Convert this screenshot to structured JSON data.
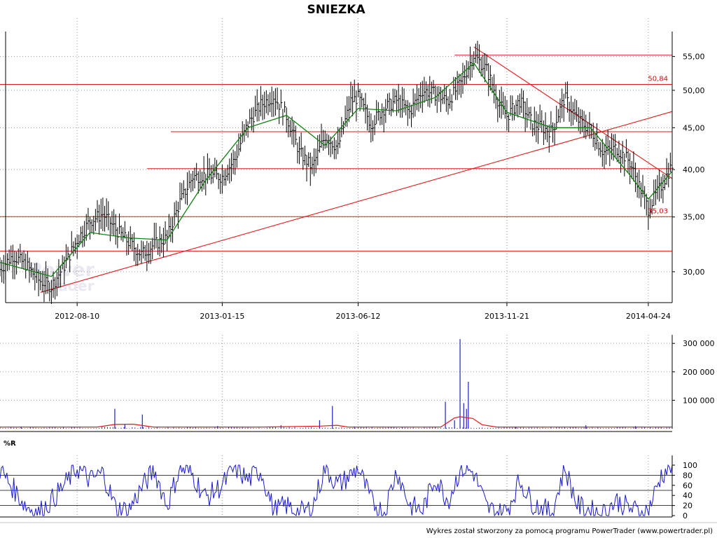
{
  "chart_data": [
    {
      "type": "candlestick",
      "title": "SNIEZKA",
      "xlim": [
        "2012-05-18",
        "2014-05-20"
      ],
      "x_tick_labels": [
        "2012-08-10",
        "2013-01-15",
        "2013-06-12",
        "2013-11-21",
        "2014-04-24"
      ],
      "y_scale": "log",
      "ylim": [
        27.5,
        59
      ],
      "y_ticks": [
        "55,00",
        "50,00",
        "45,00",
        "40,00",
        "35,00",
        "30,00"
      ],
      "grid": true,
      "series": [
        {
          "name": "close",
          "x": [
            "2012-05-18",
            "2012-06-01",
            "2012-06-15",
            "2012-06-29",
            "2012-07-13",
            "2012-07-27",
            "2012-08-10",
            "2012-08-24",
            "2012-09-07",
            "2012-09-21",
            "2012-10-05",
            "2012-10-19",
            "2012-11-02",
            "2012-11-16",
            "2012-11-30",
            "2012-12-14",
            "2012-12-28",
            "2013-01-15",
            "2013-01-29",
            "2013-02-12",
            "2013-02-26",
            "2013-03-12",
            "2013-03-26",
            "2013-04-09",
            "2013-04-23",
            "2013-05-07",
            "2013-05-21",
            "2013-06-04",
            "2013-06-12",
            "2013-06-26",
            "2013-07-10",
            "2013-07-24",
            "2013-08-07",
            "2013-08-21",
            "2013-09-04",
            "2013-09-18",
            "2013-10-02",
            "2013-10-16",
            "2013-10-30",
            "2013-11-13",
            "2013-11-21",
            "2013-12-05",
            "2013-12-19",
            "2014-01-09",
            "2014-01-23",
            "2014-02-06",
            "2014-02-20",
            "2014-03-06",
            "2014-03-20",
            "2014-04-03",
            "2014-04-17",
            "2014-04-24",
            "2014-05-08",
            "2014-05-20"
          ],
          "values": [
            30.2,
            31.4,
            30.6,
            29.3,
            28.8,
            30.5,
            32.8,
            34.6,
            35.3,
            33.8,
            32.6,
            31.5,
            32.4,
            33.0,
            36.5,
            39.2,
            39.4,
            39.2,
            41.2,
            45.5,
            48.0,
            49.2,
            46.5,
            42.0,
            40.2,
            44.0,
            42.5,
            48.5,
            49.0,
            45.5,
            47.5,
            48.6,
            47.0,
            50.0,
            49.5,
            48.5,
            51.0,
            55.2,
            53.0,
            48.0,
            46.5,
            48.5,
            45.5,
            44.5,
            49.0,
            46.0,
            44.8,
            42.0,
            42.5,
            41.0,
            37.5,
            35.8,
            38.2,
            40.5
          ]
        },
        {
          "name": "moving average",
          "x": [
            "2012-05-18",
            "2012-07-13",
            "2012-08-24",
            "2012-10-05",
            "2012-11-16",
            "2012-12-28",
            "2013-02-12",
            "2013-03-26",
            "2013-05-07",
            "2013-06-12",
            "2013-07-24",
            "2013-09-04",
            "2013-10-16",
            "2013-11-21",
            "2014-01-09",
            "2014-02-20",
            "2014-04-03",
            "2014-04-24",
            "2014-05-20"
          ],
          "values": [
            30.8,
            29.6,
            33.5,
            33.0,
            32.8,
            38.8,
            45.0,
            46.6,
            42.8,
            47.5,
            47.2,
            49.0,
            54.0,
            47.0,
            45.0,
            45.0,
            39.5,
            36.8,
            39.8
          ]
        }
      ],
      "horizontal_lines": [
        {
          "value": 55.2,
          "from": "2013-09-25"
        },
        {
          "value": 50.84,
          "label": "50,84"
        },
        {
          "value": 44.5,
          "from": "2012-11-20"
        },
        {
          "value": 40.1,
          "from": "2012-10-25"
        },
        {
          "value": 35.03,
          "label": "35,03"
        },
        {
          "value": 31.8
        }
      ],
      "trend_lines": [
        {
          "from": [
            "2012-07-01",
            28.3
          ],
          "to": [
            "2014-05-20",
            47.1
          ]
        },
        {
          "from": [
            "2013-10-16",
            56.5
          ],
          "to": [
            "2014-05-20",
            39.0
          ]
        }
      ]
    },
    {
      "type": "bar",
      "y_ticks": [
        "300 000",
        "200 000",
        "100 000"
      ],
      "ylim": [
        0,
        330000
      ],
      "x": [
        "2012-06-10",
        "2012-09-20",
        "2012-10-01",
        "2012-10-20",
        "2013-01-10",
        "2013-03-20",
        "2013-05-01",
        "2013-05-15",
        "2013-06-08",
        "2013-09-15",
        "2013-09-25",
        "2013-10-01",
        "2013-10-05",
        "2013-10-08",
        "2013-10-10",
        "2013-12-01",
        "2014-02-15",
        "2014-04-10"
      ],
      "values": [
        8000,
        70000,
        15000,
        50000,
        10000,
        12000,
        30000,
        80000,
        8000,
        95000,
        30000,
        315000,
        90000,
        70000,
        165000,
        6000,
        12000,
        9000
      ],
      "baseline_level": 3000,
      "moving_average": {
        "x": [
          "2012-05-18",
          "2012-09-01",
          "2012-09-20",
          "2012-10-10",
          "2012-11-01",
          "2013-03-01",
          "2013-05-01",
          "2013-05-20",
          "2013-06-01",
          "2013-09-10",
          "2013-09-25",
          "2013-10-01",
          "2013-10-15",
          "2013-10-25",
          "2013-11-10",
          "2014-05-20"
        ],
        "values": [
          6000,
          6000,
          15000,
          16000,
          6000,
          6000,
          9000,
          12000,
          6000,
          6000,
          38000,
          42000,
          36000,
          14000,
          6000,
          6000
        ]
      }
    },
    {
      "type": "line",
      "title": "%R",
      "ylim": [
        0,
        100
      ],
      "y_ticks": [
        "100",
        "80",
        "60",
        "40",
        "20",
        "0"
      ],
      "reference_lines": [
        80,
        50,
        20
      ],
      "series": [
        {
          "x": [
            "2012-05-18",
            "2012-06-01",
            "2012-06-15",
            "2012-06-29",
            "2012-07-13",
            "2012-07-27",
            "2012-08-10",
            "2012-08-24",
            "2012-09-07",
            "2012-09-21",
            "2012-10-05",
            "2012-10-19",
            "2012-11-02",
            "2012-11-16",
            "2012-11-30",
            "2012-12-14",
            "2012-12-28",
            "2013-01-15",
            "2013-01-29",
            "2013-02-12",
            "2013-02-26",
            "2013-03-12",
            "2013-03-26",
            "2013-04-09",
            "2013-04-23",
            "2013-05-07",
            "2013-05-21",
            "2013-06-04",
            "2013-06-12",
            "2013-06-26",
            "2013-07-10",
            "2013-07-24",
            "2013-08-07",
            "2013-08-21",
            "2013-09-04",
            "2013-09-18",
            "2013-10-02",
            "2013-10-16",
            "2013-10-30",
            "2013-11-13",
            "2013-11-21",
            "2013-12-05",
            "2013-12-19",
            "2014-01-09",
            "2014-01-23",
            "2014-02-06",
            "2014-02-20",
            "2014-03-06",
            "2014-03-20",
            "2014-04-03",
            "2014-04-17",
            "2014-04-24",
            "2014-05-08",
            "2014-05-20"
          ],
          "values": [
            90,
            55,
            20,
            5,
            30,
            60,
            95,
            70,
            85,
            15,
            10,
            55,
            90,
            20,
            95,
            80,
            35,
            60,
            95,
            70,
            90,
            10,
            20,
            5,
            15,
            95,
            60,
            80,
            95,
            30,
            5,
            90,
            20,
            10,
            75,
            30,
            95,
            85,
            15,
            5,
            10,
            70,
            25,
            5,
            95,
            20,
            10,
            5,
            30,
            15,
            5,
            10,
            80,
            100
          ]
        }
      ]
    }
  ],
  "footer": {
    "credit": "Wykres został stworzony za pomocą programu PowerTrader (www.powertrader.pl)"
  },
  "watermark": {
    "line1": "Power",
    "line2": "Trader"
  },
  "colors": {
    "price": "#000000",
    "moving_average": "#108010",
    "overlay": "#e01a1a",
    "volume": "#2020c0",
    "williams_r": "#1a1acc"
  }
}
